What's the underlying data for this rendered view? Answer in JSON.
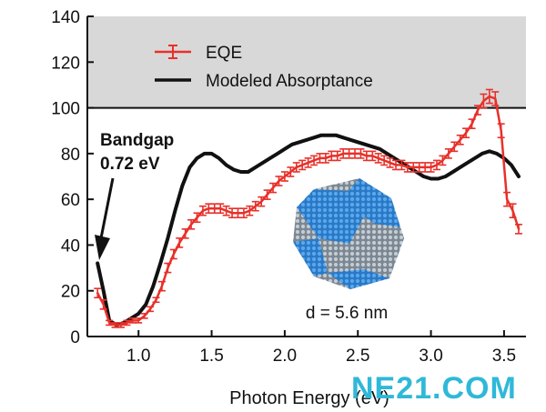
{
  "chart_data": {
    "type": "line",
    "title": "",
    "xlabel": "Photon Energy (eV)",
    "ylabel": "",
    "xlim": [
      0.65,
      3.65
    ],
    "ylim": [
      0,
      140
    ],
    "x_ticks": [
      1.0,
      1.5,
      2.0,
      2.5,
      3.0,
      3.5
    ],
    "x_tick_labels": [
      "1.0",
      "1.5",
      "2.0",
      "2.5",
      "3.0",
      "3.5"
    ],
    "y_ticks": [
      0,
      20,
      40,
      60,
      80,
      100,
      120,
      140
    ],
    "y_tick_labels": [
      "0",
      "20",
      "40",
      "60",
      "80",
      "100",
      "120",
      "140"
    ],
    "shaded_region": {
      "y_from": 100,
      "y_to": 140,
      "color": "#d8d8d8"
    },
    "legend": {
      "placement": "top-left",
      "entries": [
        {
          "label": "EQE",
          "color": "#e8302a",
          "style": "line-errorbar"
        },
        {
          "label": "Modeled Absorptance",
          "color": "#111111",
          "style": "line"
        }
      ]
    },
    "series": [
      {
        "name": "EQE",
        "color": "#e8302a",
        "error_bars": true,
        "x": [
          0.72,
          0.76,
          0.8,
          0.84,
          0.88,
          0.92,
          0.96,
          1.0,
          1.04,
          1.08,
          1.12,
          1.16,
          1.2,
          1.24,
          1.28,
          1.32,
          1.36,
          1.4,
          1.44,
          1.48,
          1.52,
          1.56,
          1.6,
          1.64,
          1.68,
          1.72,
          1.76,
          1.8,
          1.84,
          1.88,
          1.92,
          1.96,
          2.0,
          2.04,
          2.08,
          2.12,
          2.16,
          2.2,
          2.24,
          2.28,
          2.32,
          2.36,
          2.4,
          2.44,
          2.48,
          2.52,
          2.56,
          2.6,
          2.64,
          2.68,
          2.72,
          2.76,
          2.8,
          2.84,
          2.88,
          2.92,
          2.96,
          3.0,
          3.04,
          3.08,
          3.12,
          3.16,
          3.2,
          3.24,
          3.28,
          3.32,
          3.36,
          3.4,
          3.44,
          3.48,
          3.52,
          3.56,
          3.6
        ],
        "y": [
          19,
          14,
          6,
          5,
          5,
          6,
          7,
          7,
          9,
          12,
          16,
          22,
          30,
          36,
          41,
          45,
          49,
          52,
          55,
          56,
          56,
          56,
          55,
          54,
          54,
          54,
          55,
          57,
          59,
          62,
          65,
          68,
          70,
          72,
          74,
          75,
          76,
          77,
          78,
          78,
          79,
          79,
          80,
          80,
          80,
          80,
          79,
          79,
          78,
          77,
          76,
          75,
          75,
          74,
          74,
          74,
          74,
          74,
          75,
          77,
          80,
          83,
          86,
          89,
          93,
          99,
          103,
          105,
          104,
          90,
          60,
          55,
          47
        ],
        "err": [
          2,
          2,
          1,
          1,
          1,
          1,
          1,
          1,
          1,
          1,
          1,
          2,
          2,
          2,
          2,
          2,
          2,
          2,
          2,
          2,
          2,
          2,
          2,
          2,
          2,
          2,
          2,
          2,
          2,
          2,
          2,
          2,
          2,
          2,
          2,
          2,
          2,
          2,
          2,
          2,
          2,
          2,
          2,
          2,
          2,
          2,
          2,
          2,
          2,
          2,
          2,
          2,
          2,
          2,
          2,
          2,
          2,
          2,
          2,
          2,
          2,
          2,
          2,
          2,
          2,
          2,
          3,
          3,
          3,
          3,
          3,
          3,
          2
        ]
      },
      {
        "name": "Modeled Absorptance",
        "color": "#111111",
        "error_bars": false,
        "x": [
          0.72,
          0.76,
          0.8,
          0.85,
          0.9,
          0.95,
          1.0,
          1.05,
          1.1,
          1.15,
          1.2,
          1.25,
          1.3,
          1.35,
          1.4,
          1.45,
          1.5,
          1.55,
          1.6,
          1.65,
          1.7,
          1.75,
          1.8,
          1.85,
          1.9,
          1.95,
          2.0,
          2.05,
          2.1,
          2.15,
          2.2,
          2.25,
          2.3,
          2.35,
          2.4,
          2.45,
          2.5,
          2.55,
          2.6,
          2.65,
          2.7,
          2.75,
          2.8,
          2.85,
          2.9,
          2.95,
          3.0,
          3.05,
          3.1,
          3.15,
          3.2,
          3.25,
          3.3,
          3.35,
          3.4,
          3.45,
          3.5,
          3.55,
          3.6
        ],
        "y": [
          32,
          20,
          7,
          5,
          6,
          8,
          10,
          14,
          22,
          32,
          43,
          55,
          66,
          74,
          78,
          80,
          80,
          78,
          75,
          73,
          72,
          72,
          74,
          76,
          78,
          80,
          82,
          84,
          85,
          86,
          87,
          88,
          88,
          88,
          87,
          86,
          85,
          84,
          83,
          82,
          80,
          78,
          76,
          74,
          72,
          70,
          69,
          69,
          70,
          72,
          74,
          76,
          78,
          80,
          81,
          80,
          78,
          75,
          70
        ]
      }
    ],
    "annotations": [
      {
        "text_line1": "Bandgap",
        "text_line2": "0.72 eV",
        "arrow_to_x": 0.72,
        "arrow_to_y": 32
      },
      {
        "text": "d = 5.6 nm"
      }
    ],
    "inset": {
      "description": "nanocrystal rendering",
      "colors": [
        "#3a8fd6",
        "#a8b4bf"
      ]
    }
  },
  "watermark": "NE21.COM"
}
